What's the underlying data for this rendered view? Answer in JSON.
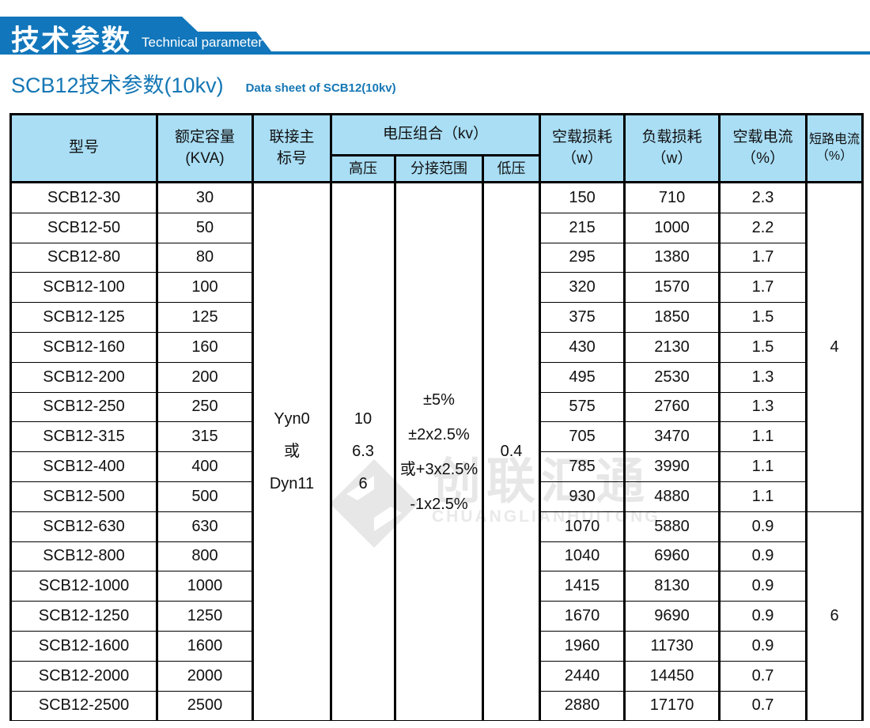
{
  "page": {
    "banner": {
      "title_cn": "技术参数",
      "title_en": "Technical parameter"
    },
    "subtitle": {
      "cn": "SCB12技术参数(10kv)",
      "en": "Data sheet of SCB12(10kv)"
    },
    "colors": {
      "brand_blue": "#1176bb",
      "table_header_bg": "#a9def5",
      "subtitle_blue": "#1577b5",
      "border": "#000000",
      "watermark_gray": "#e7e7e7"
    }
  },
  "watermark": {
    "cn": "创联汇通",
    "en": "CHUANGLIANHUITONG"
  },
  "table": {
    "headers": {
      "model": "型号",
      "capacity_l1": "额定容量",
      "capacity_l2": "(KVA)",
      "vector_l1": "联接主",
      "vector_l2": "标号",
      "voltage_group": "电压组合（kv）",
      "hv": "高压",
      "tap": "分接范围",
      "lv": "低压",
      "no_load_loss_l1": "空载损耗",
      "no_load_loss_l2": "（w）",
      "load_loss_l1": "负载损耗",
      "load_loss_l2": "（w）",
      "no_load_current_l1": "空载电流",
      "no_load_current_l2": "（%）",
      "short_circuit_l1": "短路电流",
      "short_circuit_l2": "（%）"
    },
    "merged": {
      "vector": [
        "Yyn0",
        "或",
        "Dyn11"
      ],
      "hv": [
        "10",
        "6.3",
        "6"
      ],
      "tap": [
        "±5%",
        "±2x2.5%",
        "或+3x2.5%",
        "-1x2.5%"
      ],
      "lv": "0.4",
      "short_circuit_group1": "4",
      "short_circuit_group1_rows": 11,
      "short_circuit_group2": "6",
      "short_circuit_group2_rows": 7
    },
    "rows": [
      {
        "model": "SCB12-30",
        "capacity": "30",
        "no_load_loss": "150",
        "load_loss": "710",
        "no_load_current": "2.3"
      },
      {
        "model": "SCB12-50",
        "capacity": "50",
        "no_load_loss": "215",
        "load_loss": "1000",
        "no_load_current": "2.2"
      },
      {
        "model": "SCB12-80",
        "capacity": "80",
        "no_load_loss": "295",
        "load_loss": "1380",
        "no_load_current": "1.7"
      },
      {
        "model": "SCB12-100",
        "capacity": "100",
        "no_load_loss": "320",
        "load_loss": "1570",
        "no_load_current": "1.7"
      },
      {
        "model": "SCB12-125",
        "capacity": "125",
        "no_load_loss": "375",
        "load_loss": "1850",
        "no_load_current": "1.5"
      },
      {
        "model": "SCB12-160",
        "capacity": "160",
        "no_load_loss": "430",
        "load_loss": "2130",
        "no_load_current": "1.5"
      },
      {
        "model": "SCB12-200",
        "capacity": "200",
        "no_load_loss": "495",
        "load_loss": "2530",
        "no_load_current": "1.3"
      },
      {
        "model": "SCB12-250",
        "capacity": "250",
        "no_load_loss": "575",
        "load_loss": "2760",
        "no_load_current": "1.3"
      },
      {
        "model": "SCB12-315",
        "capacity": "315",
        "no_load_loss": "705",
        "load_loss": "3470",
        "no_load_current": "1.1"
      },
      {
        "model": "SCB12-400",
        "capacity": "400",
        "no_load_loss": "785",
        "load_loss": "3990",
        "no_load_current": "1.1"
      },
      {
        "model": "SCB12-500",
        "capacity": "500",
        "no_load_loss": "930",
        "load_loss": "4880",
        "no_load_current": "1.1"
      },
      {
        "model": "SCB12-630",
        "capacity": "630",
        "no_load_loss": "1070",
        "load_loss": "5880",
        "no_load_current": "0.9"
      },
      {
        "model": "SCB12-800",
        "capacity": "800",
        "no_load_loss": "1040",
        "load_loss": "6960",
        "no_load_current": "0.9"
      },
      {
        "model": "SCB12-1000",
        "capacity": "1000",
        "no_load_loss": "1415",
        "load_loss": "8130",
        "no_load_current": "0.9"
      },
      {
        "model": "SCB12-1250",
        "capacity": "1250",
        "no_load_loss": "1670",
        "load_loss": "9690",
        "no_load_current": "0.9"
      },
      {
        "model": "SCB12-1600",
        "capacity": "1600",
        "no_load_loss": "1960",
        "load_loss": "11730",
        "no_load_current": "0.9"
      },
      {
        "model": "SCB12-2000",
        "capacity": "2000",
        "no_load_loss": "2440",
        "load_loss": "14450",
        "no_load_current": "0.7"
      },
      {
        "model": "SCB12-2500",
        "capacity": "2500",
        "no_load_loss": "2880",
        "load_loss": "17170",
        "no_load_current": "0.7"
      }
    ]
  }
}
